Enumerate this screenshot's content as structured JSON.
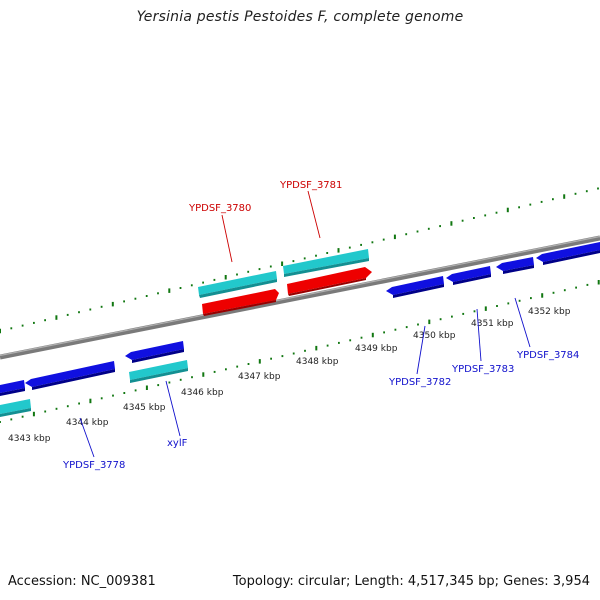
{
  "title": "Yersinia pestis Pestoides F, complete genome",
  "footer": {
    "accession": "Accession: NC_009381",
    "summary": "Topology: circular; Length: 4,517,345 bp; Genes: 3,954"
  },
  "colors": {
    "axis": "#8a8a8a",
    "tick": "#117711",
    "forward_cds": "#ee0000",
    "reverse_cds": "#1010e0",
    "feature_cyan": "#22c8cc",
    "label_red": "#cc0000",
    "label_blue": "#1010cc"
  },
  "tick_labels": [
    "4343 kbp",
    "4344 kbp",
    "4345 kbp",
    "4346 kbp",
    "4347 kbp",
    "4348 kbp",
    "4349 kbp",
    "4350 kbp",
    "4351 kbp",
    "4352 kbp"
  ],
  "gene_labels": {
    "YPDSF_3778": "YPDSF_3778",
    "xylF": "xylF",
    "YPDSF_3780": "YPDSF_3780",
    "YPDSF_3781": "YPDSF_3781",
    "YPDSF_3782": "YPDSF_3782",
    "YPDSF_3783": "YPDSF_3783",
    "YPDSF_3784": "YPDSF_3784"
  }
}
